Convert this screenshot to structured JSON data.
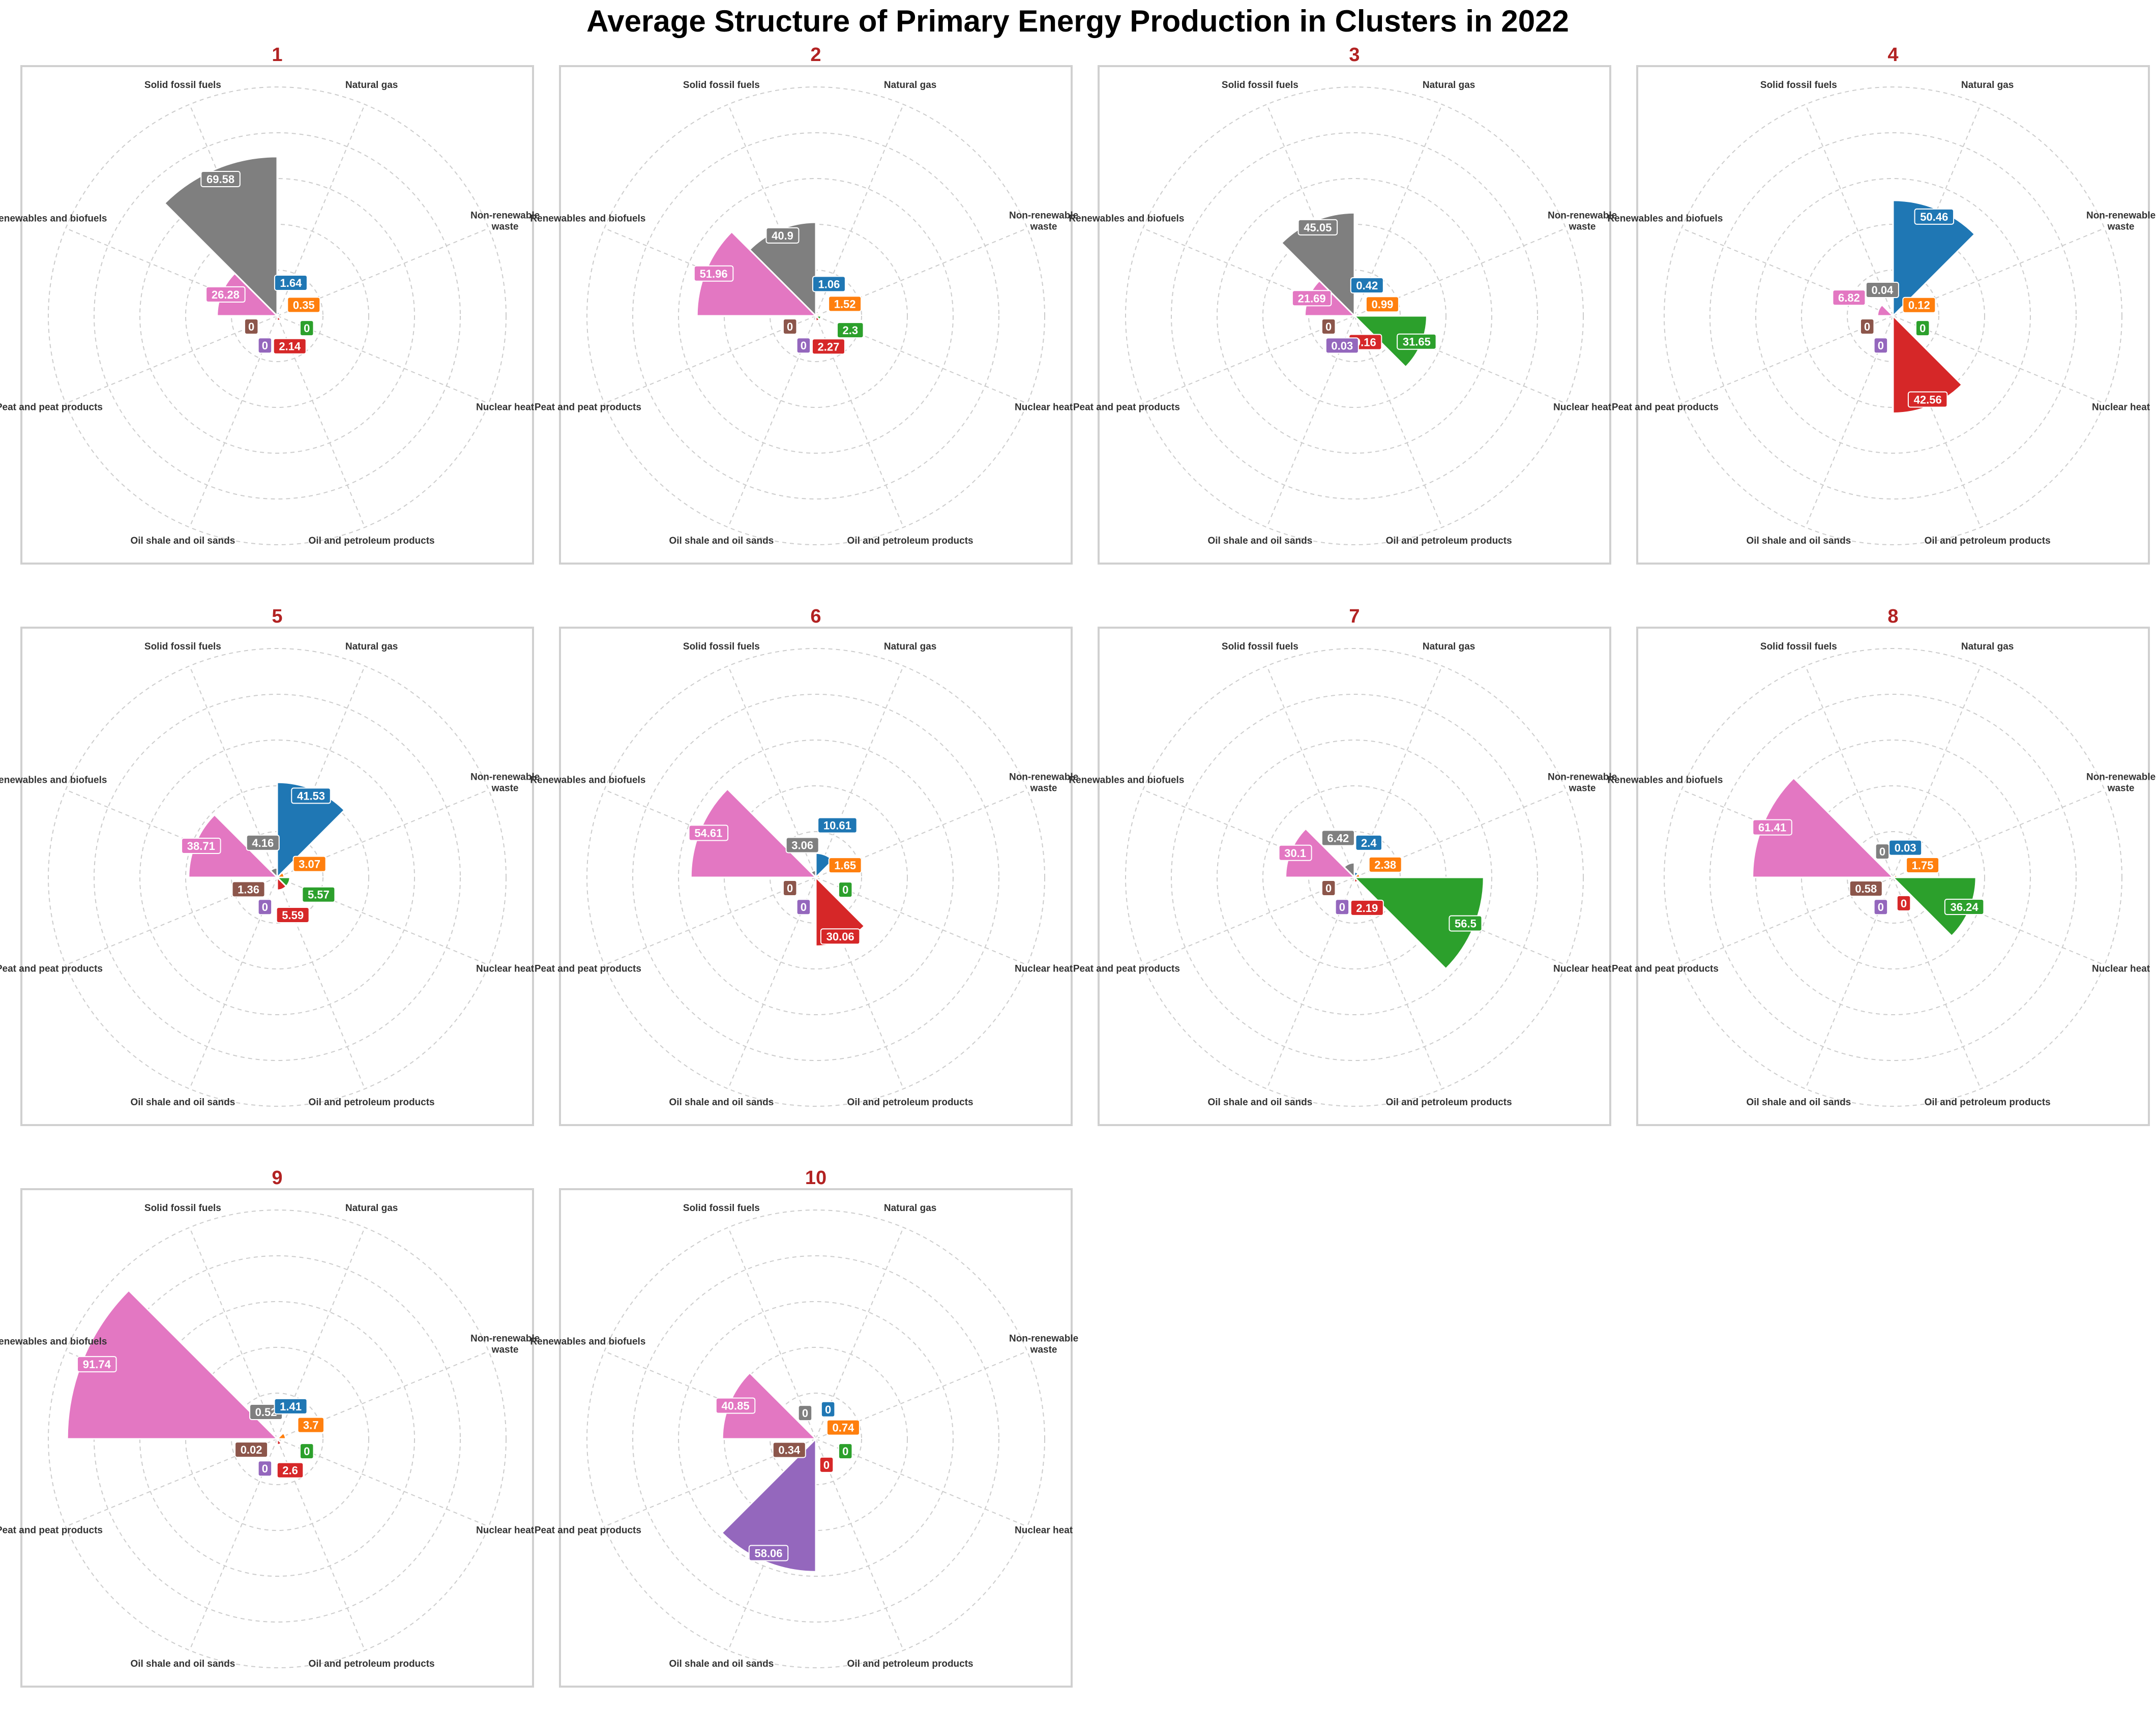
{
  "title": "Average Structure of Primary Energy Production in Clusters in 2022",
  "categories": [
    {
      "name": "Solid fossil fuels",
      "color": "#7f7f7f"
    },
    {
      "name": "Natural gas",
      "color": "#1f77b4"
    },
    {
      "name": "Non-renewable waste",
      "color": "#ff7f0e"
    },
    {
      "name": "Nuclear heat",
      "color": "#2ca02c"
    },
    {
      "name": "Oil and petroleum products",
      "color": "#d62728"
    },
    {
      "name": "Oil shale and oil sands",
      "color": "#9467bd"
    },
    {
      "name": "Peat and peat products",
      "color": "#8c564b"
    },
    {
      "name": "Renewables and biofuels",
      "color": "#e377c2"
    }
  ],
  "chart_data": [
    {
      "type": "bar",
      "polar": true,
      "title": "1",
      "categories": [
        "Solid fossil fuels",
        "Natural gas",
        "Non-renewable waste",
        "Nuclear heat",
        "Oil and petroleum products",
        "Oil shale and oil sands",
        "Peat and peat products",
        "Renewables and biofuels"
      ],
      "values": [
        69.58,
        1.64,
        0.35,
        0,
        2.14,
        0,
        0,
        26.28
      ]
    },
    {
      "type": "bar",
      "polar": true,
      "title": "2",
      "categories": [
        "Solid fossil fuels",
        "Natural gas",
        "Non-renewable waste",
        "Nuclear heat",
        "Oil and petroleum products",
        "Oil shale and oil sands",
        "Peat and peat products",
        "Renewables and biofuels"
      ],
      "values": [
        40.9,
        1.06,
        1.52,
        2.3,
        2.27,
        0,
        0,
        51.96
      ]
    },
    {
      "type": "bar",
      "polar": true,
      "title": "3",
      "categories": [
        "Solid fossil fuels",
        "Natural gas",
        "Non-renewable waste",
        "Nuclear heat",
        "Oil and petroleum products",
        "Oil shale and oil sands",
        "Peat and peat products",
        "Renewables and biofuels"
      ],
      "values": [
        45.05,
        0.42,
        0.99,
        31.65,
        0.16,
        0.03,
        0,
        21.69
      ]
    },
    {
      "type": "bar",
      "polar": true,
      "title": "4",
      "categories": [
        "Solid fossil fuels",
        "Natural gas",
        "Non-renewable waste",
        "Nuclear heat",
        "Oil and petroleum products",
        "Oil shale and oil sands",
        "Peat and peat products",
        "Renewables and biofuels"
      ],
      "values": [
        0.04,
        50.46,
        0.12,
        0,
        42.56,
        0,
        0,
        6.82
      ]
    },
    {
      "type": "bar",
      "polar": true,
      "title": "5",
      "categories": [
        "Solid fossil fuels",
        "Natural gas",
        "Non-renewable waste",
        "Nuclear heat",
        "Oil and petroleum products",
        "Oil shale and oil sands",
        "Peat and peat products",
        "Renewables and biofuels"
      ],
      "values": [
        4.16,
        41.53,
        3.07,
        5.57,
        5.59,
        0,
        1.36,
        38.71
      ]
    },
    {
      "type": "bar",
      "polar": true,
      "title": "6",
      "categories": [
        "Solid fossil fuels",
        "Natural gas",
        "Non-renewable waste",
        "Nuclear heat",
        "Oil and petroleum products",
        "Oil shale and oil sands",
        "Peat and peat products",
        "Renewables and biofuels"
      ],
      "values": [
        3.06,
        10.61,
        1.65,
        0,
        30.06,
        0,
        0,
        54.61
      ]
    },
    {
      "type": "bar",
      "polar": true,
      "title": "7",
      "categories": [
        "Solid fossil fuels",
        "Natural gas",
        "Non-renewable waste",
        "Nuclear heat",
        "Oil and petroleum products",
        "Oil shale and oil sands",
        "Peat and peat products",
        "Renewables and biofuels"
      ],
      "values": [
        6.42,
        2.4,
        2.38,
        56.5,
        2.19,
        0,
        0,
        30.1
      ]
    },
    {
      "type": "bar",
      "polar": true,
      "title": "8",
      "categories": [
        "Solid fossil fuels",
        "Natural gas",
        "Non-renewable waste",
        "Nuclear heat",
        "Oil and petroleum products",
        "Oil shale and oil sands",
        "Peat and peat products",
        "Renewables and biofuels"
      ],
      "values": [
        0,
        0.03,
        1.75,
        36.24,
        0,
        0,
        0.58,
        61.41
      ]
    },
    {
      "type": "bar",
      "polar": true,
      "title": "9",
      "categories": [
        "Solid fossil fuels",
        "Natural gas",
        "Non-renewable waste",
        "Nuclear heat",
        "Oil and petroleum products",
        "Oil shale and oil sands",
        "Peat and peat products",
        "Renewables and biofuels"
      ],
      "values": [
        0.52,
        1.41,
        3.7,
        0,
        2.6,
        0,
        0.02,
        91.74
      ]
    },
    {
      "type": "bar",
      "polar": true,
      "title": "10",
      "categories": [
        "Solid fossil fuels",
        "Natural gas",
        "Non-renewable waste",
        "Nuclear heat",
        "Oil and petroleum products",
        "Oil shale and oil sands",
        "Peat and peat products",
        "Renewables and biofuels"
      ],
      "values": [
        0,
        0,
        0.74,
        0,
        0,
        58.06,
        0.34,
        40.85
      ]
    }
  ]
}
